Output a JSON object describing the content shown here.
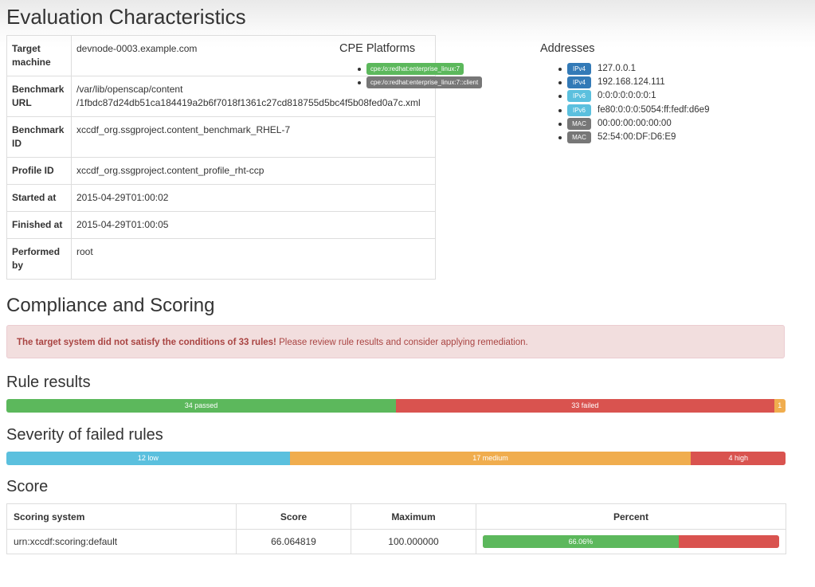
{
  "evaluation": {
    "title": "Evaluation Characteristics",
    "rows": [
      {
        "label": "Target machine",
        "value": [
          "devnode-0003.example.com"
        ]
      },
      {
        "label": "Benchmark URL",
        "value": [
          "/var/lib/openscap/content",
          "/1fbdc87d24db51ca184419a2b6f7018f1361c27cd818755d5bc4f5b08fed0a7c.xml"
        ]
      },
      {
        "label": "Benchmark ID",
        "value": [
          "xccdf_org.ssgproject.content_benchmark_RHEL-7"
        ]
      },
      {
        "label": "Profile ID",
        "value": [
          "xccdf_org.ssgproject.content_profile_rht-ccp"
        ]
      },
      {
        "label": "Started at",
        "value": [
          "2015-04-29T01:00:02"
        ]
      },
      {
        "label": "Finished at",
        "value": [
          "2015-04-29T01:00:05"
        ]
      },
      {
        "label": "Performed by",
        "value": [
          "root"
        ]
      }
    ],
    "cpe": {
      "title": "CPE Platforms",
      "items": [
        "cpe:/o:redhat:enterprise_linux:7",
        "cpe:/o:redhat:enterprise_linux:7::client"
      ]
    },
    "addresses": {
      "title": "Addresses",
      "items": [
        {
          "type": "IPv4",
          "address": "127.0.0.1"
        },
        {
          "type": "IPv4",
          "address": "192.168.124.111"
        },
        {
          "type": "IPv6",
          "address": "0:0:0:0:0:0:0:1"
        },
        {
          "type": "IPv6",
          "address": "fe80:0:0:0:5054:ff:fedf:d6e9"
        },
        {
          "type": "MAC",
          "address": "00:00:00:00:00:00"
        },
        {
          "type": "MAC",
          "address": "52:54:00:DF:D6:E9"
        }
      ]
    }
  },
  "compliance": {
    "title": "Compliance and Scoring",
    "alert": {
      "strong": "The target system did not satisfy the conditions of 33 rules!",
      "text": "Please review rule results and consider applying remediation."
    },
    "rule_results": {
      "title": "Rule results",
      "segments": [
        {
          "count": 34,
          "label": "34 passed",
          "color": "#5cb85c"
        },
        {
          "count": 33,
          "label": "33 failed",
          "color": "#d9534f"
        },
        {
          "count": 1,
          "label": "1",
          "color": "#f0ad4e"
        }
      ]
    },
    "severity": {
      "title": "Severity of failed rules",
      "segments": [
        {
          "count": 12,
          "label": "12 low",
          "color": "#5bc0de"
        },
        {
          "count": 17,
          "label": "17 medium",
          "color": "#f0ad4e"
        },
        {
          "count": 4,
          "label": "4 high",
          "color": "#d9534f"
        }
      ]
    },
    "score": {
      "title": "Score",
      "headers": [
        "Scoring system",
        "Score",
        "Maximum",
        "Percent"
      ],
      "row": {
        "system": "urn:xccdf:scoring:default",
        "score": "66.064819",
        "maximum": "100.000000",
        "percent": {
          "value": 66.06,
          "label": "66.06%"
        }
      }
    }
  }
}
